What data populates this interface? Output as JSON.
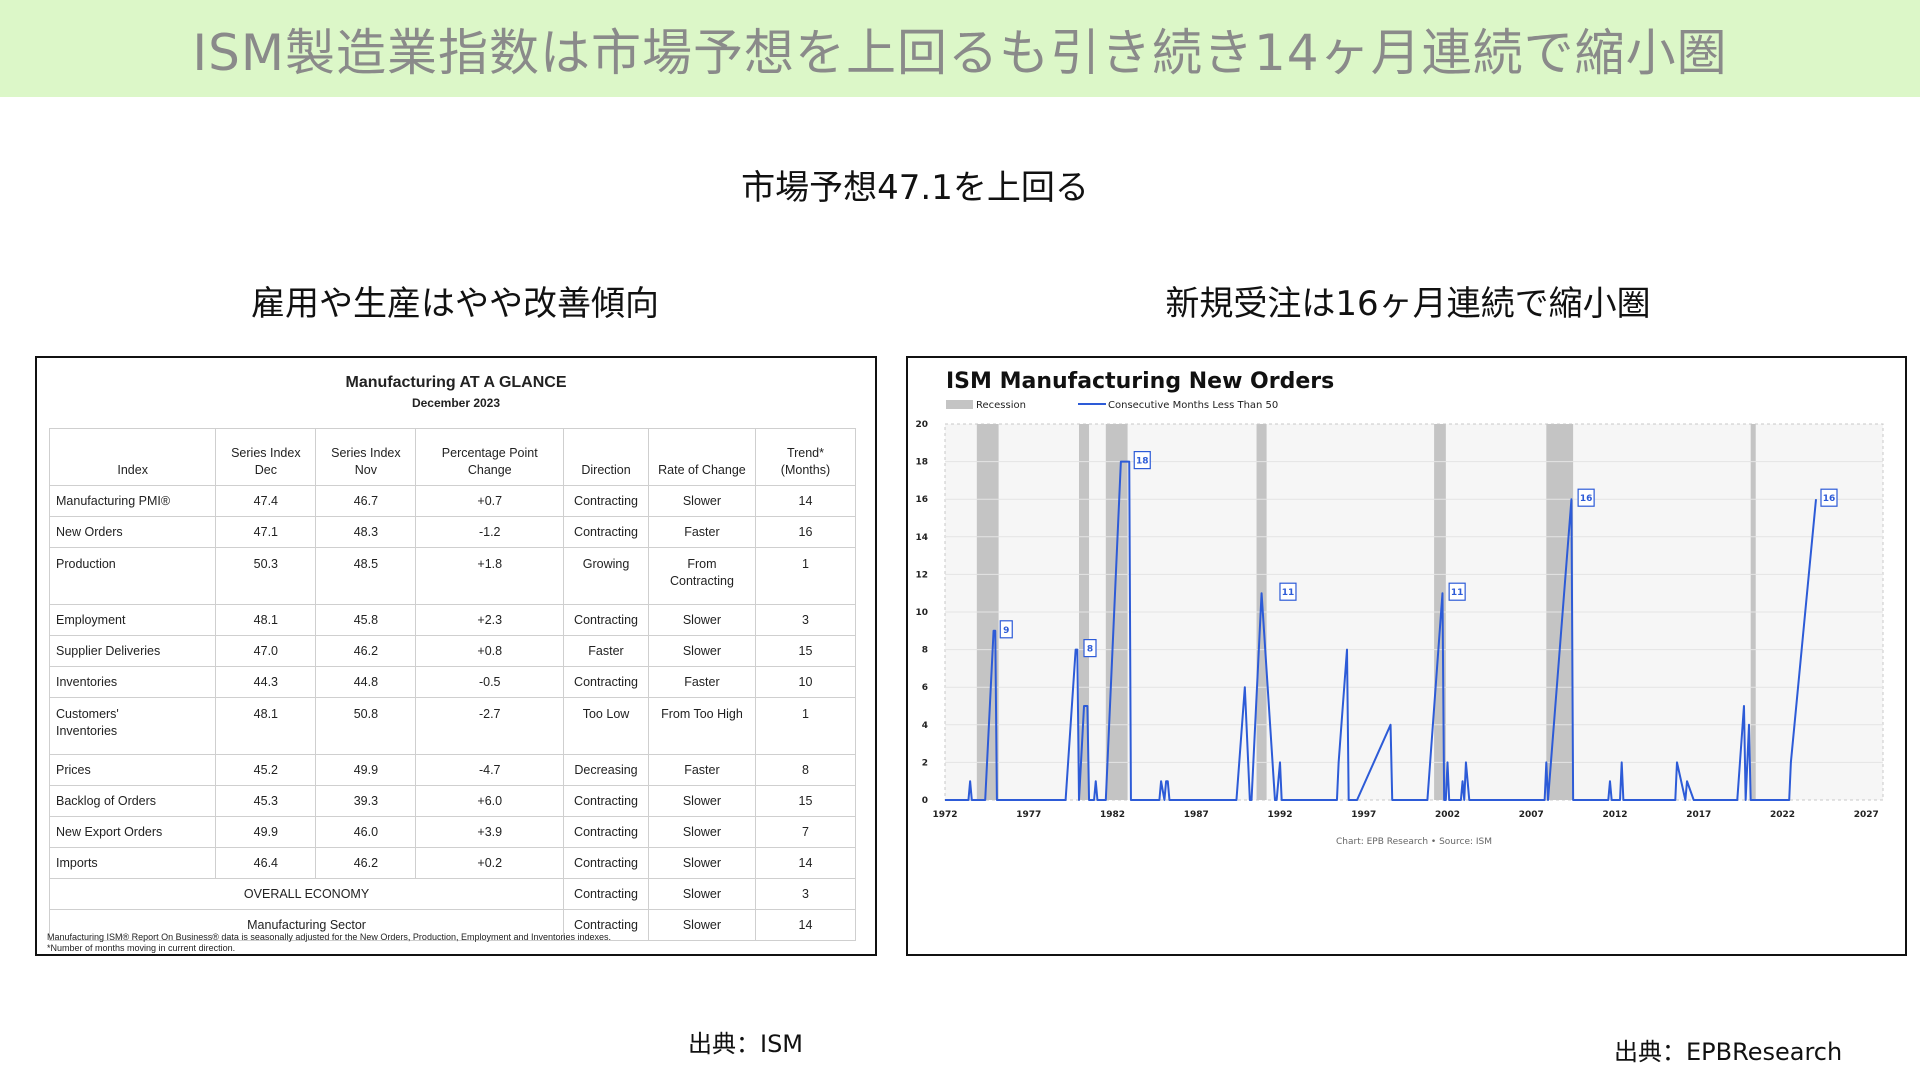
{
  "banner_title": "ISM製造業指数は市場予想を上回るも引き続き14ヶ月連続で縮小圏",
  "subtitle": "市場予想47.1を上回る",
  "left_title": "雇用や生産はやや改善傾向",
  "right_title": "新規受注は16ヶ月連続で縮小圏",
  "source_left": "出典：ISM",
  "source_right": "出典：EPBResearch",
  "colors": {
    "banner_bg": "#dcf7c8",
    "banner_text": "#8a8a8a",
    "series_line": "#2d5bd7",
    "recession": "#c4c4c4"
  },
  "table": {
    "title": "Manufacturing AT A GLANCE",
    "subtitle": "December 2023",
    "headers": [
      "Index",
      "Series Index\nDec",
      "Series Index\nNov",
      "Percentage Point\nChange",
      "Direction",
      "Rate of Change",
      "Trend*\n(Months)"
    ],
    "rows": [
      [
        "Manufacturing PMI®",
        "47.4",
        "46.7",
        "+0.7",
        "Contracting",
        "Slower",
        "14"
      ],
      [
        "New Orders",
        "47.1",
        "48.3",
        "-1.2",
        "Contracting",
        "Faster",
        "16"
      ],
      [
        "Production",
        "50.3",
        "48.5",
        "+1.8",
        "Growing",
        "From\nContracting",
        "1"
      ],
      [
        "Employment",
        "48.1",
        "45.8",
        "+2.3",
        "Contracting",
        "Slower",
        "3"
      ],
      [
        "Supplier Deliveries",
        "47.0",
        "46.2",
        "+0.8",
        "Faster",
        "Slower",
        "15"
      ],
      [
        "Inventories",
        "44.3",
        "44.8",
        "-0.5",
        "Contracting",
        "Faster",
        "10"
      ],
      [
        "Customers'\nInventories",
        "48.1",
        "50.8",
        "-2.7",
        "Too Low",
        "From Too High",
        "1"
      ],
      [
        "Prices",
        "45.2",
        "49.9",
        "-4.7",
        "Decreasing",
        "Faster",
        "8"
      ],
      [
        "Backlog of Orders",
        "45.3",
        "39.3",
        "+6.0",
        "Contracting",
        "Slower",
        "15"
      ],
      [
        "New Export Orders",
        "49.9",
        "46.0",
        "+3.9",
        "Contracting",
        "Slower",
        "7"
      ],
      [
        "Imports",
        "46.4",
        "46.2",
        "+0.2",
        "Contracting",
        "Slower",
        "14"
      ]
    ],
    "summary_rows": [
      [
        "OVERALL ECONOMY",
        "Contracting",
        "Slower",
        "3"
      ],
      [
        "Manufacturing Sector",
        "Contracting",
        "Slower",
        "14"
      ]
    ],
    "footnote_1": "Manufacturing ISM® Report On Business® data is seasonally adjusted for the New Orders, Production, Employment and Inventories indexes.",
    "footnote_2": "*Number of months moving in current direction."
  },
  "chart_data": {
    "type": "line",
    "title": "ISM Manufacturing New Orders",
    "legend": [
      "Recession",
      "Consecutive Months Less Than 50"
    ],
    "legend_placement": "top-left",
    "source_note": "Chart: EPB Research  •  Source: ISM",
    "xlabel": "",
    "ylabel": "",
    "xlim": [
      1972,
      2028
    ],
    "ylim": [
      0,
      20
    ],
    "x_ticks": [
      1972,
      1977,
      1982,
      1987,
      1992,
      1997,
      2002,
      2007,
      2012,
      2017,
      2022,
      2027
    ],
    "y_ticks": [
      0,
      2,
      4,
      6,
      8,
      10,
      12,
      14,
      16,
      18,
      20
    ],
    "grid": true,
    "recessions": [
      [
        1973.9,
        1975.2
      ],
      [
        1980.0,
        1980.6
      ],
      [
        1981.6,
        1982.9
      ],
      [
        1990.6,
        1991.2
      ],
      [
        2001.2,
        2001.9
      ],
      [
        2007.9,
        2009.5
      ],
      [
        2020.1,
        2020.4
      ]
    ],
    "series": [
      {
        "x": [
          1972.0,
          1973.4,
          1973.5,
          1973.6,
          1974.4,
          1974.9,
          1975.0,
          1975.1,
          1979.2,
          1979.8,
          1979.9,
          1980.0,
          1980.3,
          1980.5,
          1980.6,
          1980.9,
          1981.0,
          1981.1,
          1981.6,
          1982.5,
          1983.0,
          1983.1,
          1984.8,
          1984.9,
          1985.1,
          1985.2,
          1985.3,
          1985.4,
          1985.5,
          1989.4,
          1989.9,
          1990.2,
          1990.3,
          1990.9,
          1991.7,
          1991.8,
          1992.0,
          1992.1,
          1995.4,
          1995.5,
          1996.0,
          1996.1,
          1996.6,
          1998.6,
          1998.7,
          1999.3,
          1999.4,
          2000.8,
          2001.7,
          2001.8,
          2001.9,
          2002.0,
          2002.1,
          2002.8,
          2002.9,
          2003.0,
          2003.1,
          2003.3,
          2003.4,
          2007.8,
          2007.9,
          2008.0,
          2009.4,
          2009.5,
          2011.6,
          2011.7,
          2011.8,
          2012.3,
          2012.4,
          2012.5,
          2015.6,
          2015.7,
          2016.2,
          2016.3,
          2016.7,
          2016.8,
          2019.3,
          2019.7,
          2019.8,
          2020.0,
          2020.1,
          2020.2,
          2022.4,
          2022.5,
          2024.0
        ],
        "values": [
          0,
          0,
          1,
          0,
          0,
          9,
          9,
          0,
          0,
          8,
          8,
          0,
          5,
          5,
          0,
          0,
          1,
          0,
          0,
          18,
          18,
          0,
          0,
          1,
          0,
          1,
          1,
          0,
          0,
          0,
          6,
          0,
          0,
          11,
          0,
          0,
          2,
          0,
          0,
          2,
          8,
          0,
          0,
          4,
          0,
          0,
          0,
          0,
          11,
          0,
          0,
          2,
          0,
          0,
          1,
          0,
          2,
          0,
          0,
          0,
          2,
          0,
          16,
          0,
          0,
          1,
          0,
          0,
          2,
          0,
          0,
          2,
          0,
          1,
          0,
          0,
          0,
          5,
          0,
          4,
          0,
          0,
          0,
          2,
          16
        ]
      }
    ],
    "annotations": [
      {
        "x": 1975.0,
        "y": 9,
        "label": "9"
      },
      {
        "x": 1980.0,
        "y": 8,
        "label": "8"
      },
      {
        "x": 1983.0,
        "y": 18,
        "label": "18"
      },
      {
        "x": 1991.7,
        "y": 11,
        "label": "11"
      },
      {
        "x": 2001.8,
        "y": 11,
        "label": "11"
      },
      {
        "x": 2009.5,
        "y": 16,
        "label": "16"
      },
      {
        "x": 2024.0,
        "y": 16,
        "label": "16"
      }
    ]
  }
}
